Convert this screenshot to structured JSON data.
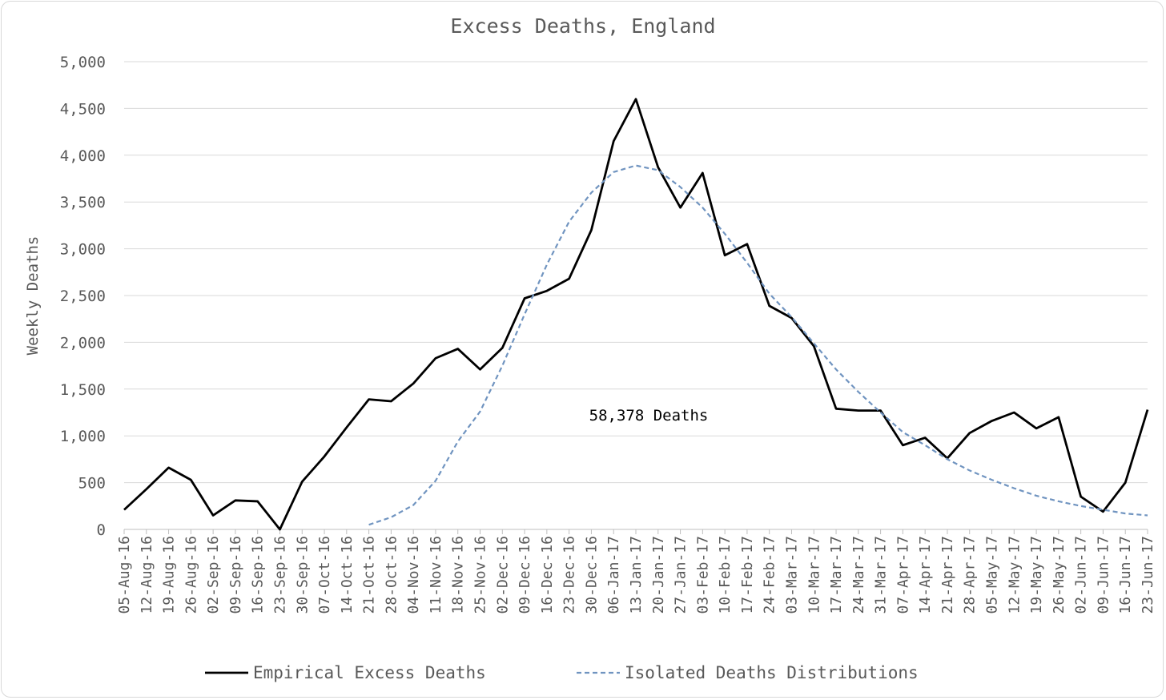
{
  "chart_data": {
    "type": "line",
    "title": "Excess Deaths, England",
    "ylabel": "Weekly Deaths",
    "xlabel": "",
    "ylim": [
      0,
      5000
    ],
    "yticks": [
      0,
      500,
      1000,
      1500,
      2000,
      2500,
      3000,
      3500,
      4000,
      4500,
      5000
    ],
    "ytick_labels": [
      "0",
      "500",
      "1,000",
      "1,500",
      "2,000",
      "2,500",
      "3,000",
      "3,500",
      "4,000",
      "4,500",
      "5,000"
    ],
    "grid": true,
    "legend_position": "bottom",
    "categories": [
      "05-Aug-16",
      "12-Aug-16",
      "19-Aug-16",
      "26-Aug-16",
      "02-Sep-16",
      "09-Sep-16",
      "16-Sep-16",
      "23-Sep-16",
      "30-Sep-16",
      "07-Oct-16",
      "14-Oct-16",
      "21-Oct-16",
      "28-Oct-16",
      "04-Nov-16",
      "11-Nov-16",
      "18-Nov-16",
      "25-Nov-16",
      "02-Dec-16",
      "09-Dec-16",
      "16-Dec-16",
      "23-Dec-16",
      "30-Dec-16",
      "06-Jan-17",
      "13-Jan-17",
      "20-Jan-17",
      "27-Jan-17",
      "03-Feb-17",
      "10-Feb-17",
      "17-Feb-17",
      "24-Feb-17",
      "03-Mar-17",
      "10-Mar-17",
      "17-Mar-17",
      "24-Mar-17",
      "31-Mar-17",
      "07-Apr-17",
      "14-Apr-17",
      "21-Apr-17",
      "28-Apr-17",
      "05-May-17",
      "12-May-17",
      "19-May-17",
      "26-May-17",
      "02-Jun-17",
      "09-Jun-17",
      "16-Jun-17",
      "23-Jun-17"
    ],
    "series": [
      {
        "name": "Empirical Excess Deaths",
        "color": "#000000",
        "style": "solid",
        "values": [
          210,
          430,
          660,
          530,
          150,
          310,
          300,
          0,
          510,
          780,
          1090,
          1390,
          1370,
          1560,
          1830,
          1930,
          1710,
          1940,
          2470,
          2550,
          2680,
          3200,
          4150,
          4600,
          3870,
          3440,
          3810,
          2930,
          3050,
          2390,
          2260,
          1960,
          1290,
          1270,
          1270,
          900,
          980,
          760,
          1030,
          1160,
          1250,
          1080,
          1200,
          350,
          190,
          500,
          1280
        ]
      },
      {
        "name": "Isolated Deaths Distributions",
        "color": "#7094c0",
        "style": "dashed",
        "values": [
          null,
          null,
          null,
          null,
          null,
          null,
          null,
          null,
          null,
          null,
          null,
          50,
          130,
          260,
          520,
          940,
          1260,
          1750,
          2300,
          2830,
          3290,
          3600,
          3820,
          3890,
          3840,
          3660,
          3440,
          3160,
          2850,
          2520,
          2270,
          1990,
          1710,
          1470,
          1250,
          1040,
          900,
          750,
          630,
          530,
          440,
          360,
          300,
          250,
          210,
          170,
          150
        ]
      }
    ],
    "annotations": [
      {
        "text": "58,378 Deaths"
      }
    ]
  }
}
